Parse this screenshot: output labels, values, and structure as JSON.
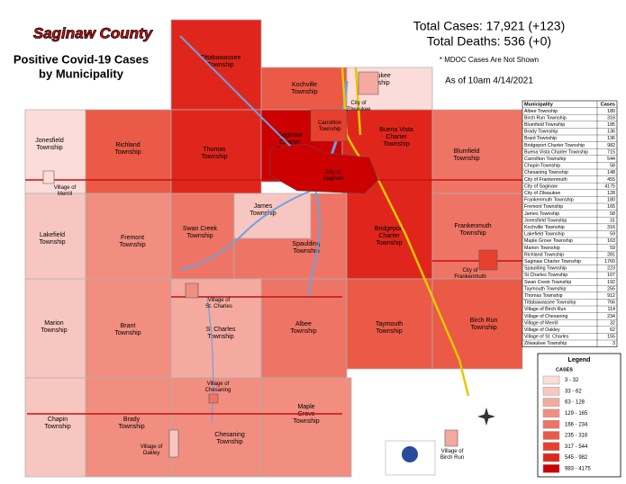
{
  "header": {
    "title": "Saginaw County",
    "subtitle_lines": [
      "Positive Covid-19 Cases",
      "by Municipality"
    ],
    "total_cases": "Total Cases:  17,921 (+123)",
    "total_deaths": "Total Deaths: 536 (+0)",
    "note": "* MDOC Cases Are Not Shown",
    "as_of": "As of 10am 4/14/2021"
  },
  "map": {
    "regions": [
      {
        "label": [
          "Tittabawassee",
          "Township"
        ],
        "color": "#e0261c"
      },
      {
        "label": [
          "Kochville",
          "Township"
        ],
        "color": "#ea5a46"
      },
      {
        "label": [
          "Zilwaukee",
          "Township"
        ],
        "color": "#fbdcd8"
      },
      {
        "label": [
          "Jonesfield",
          "Township"
        ],
        "color": "#fbdcd8"
      },
      {
        "label": [
          "Richland",
          "Township"
        ],
        "color": "#ea5a46"
      },
      {
        "label": [
          "Thomas",
          "Township"
        ],
        "color": "#e0261c"
      },
      {
        "label": [
          "Saginaw",
          "Charter",
          "Township"
        ],
        "color": "#cc0000"
      },
      {
        "label": [
          "Buena Vista",
          "Charter",
          "Township"
        ],
        "color": "#e0261c"
      },
      {
        "label": [
          "Blumfield",
          "Township"
        ],
        "color": "#ee7566"
      },
      {
        "label": [
          "Lakefield",
          "Township"
        ],
        "color": "#f8c6c0"
      },
      {
        "label": [
          "Fremont",
          "Township"
        ],
        "color": "#f18e80"
      },
      {
        "label": [
          "Swan Creek",
          "Township"
        ],
        "color": "#ee7566"
      },
      {
        "label": [
          "James",
          "Township"
        ],
        "color": "#f8c6c0"
      },
      {
        "label": [
          "Spaulding",
          "Township"
        ],
        "color": "#ee7566"
      },
      {
        "label": [
          "Bridgeport",
          "Charter",
          "Township"
        ],
        "color": "#e0261c"
      },
      {
        "label": [
          "Frankenmuth",
          "Township"
        ],
        "color": "#ee7566"
      },
      {
        "label": [
          "Marion",
          "Township"
        ],
        "color": "#f8c6c0"
      },
      {
        "label": [
          "Brant",
          "Township"
        ],
        "color": "#f18e80"
      },
      {
        "label": [
          "St Charles",
          "Township"
        ],
        "color": "#f5aaa0"
      },
      {
        "label": [
          "Albee",
          "Township"
        ],
        "color": "#ee7566"
      },
      {
        "label": [
          "Taymouth",
          "Township"
        ],
        "color": "#ea5a46"
      },
      {
        "label": [
          "Birch Run",
          "Township"
        ],
        "color": "#ea5a46"
      },
      {
        "label": [
          "Chapin",
          "Township"
        ],
        "color": "#f8c6c0"
      },
      {
        "label": [
          "Brady",
          "Township"
        ],
        "color": "#f18e80"
      },
      {
        "label": [
          "Chesaning",
          "Township"
        ],
        "color": "#f18e80"
      },
      {
        "label": [
          "Maple",
          "Grove",
          "Township"
        ],
        "color": "#f18e80"
      }
    ],
    "places": [
      {
        "label": [
          "City of",
          "Saginaw"
        ],
        "color": "#cc0000"
      },
      {
        "label": [
          "Carrollton",
          "Township"
        ],
        "color": "#e8402e"
      },
      {
        "label": [
          "City of",
          "Zilwaukee"
        ],
        "color": "#f5aaa0"
      },
      {
        "label": [
          "Village of",
          "Merrill"
        ],
        "color": "#fbdcd8"
      },
      {
        "label": [
          "Village of",
          "St. Charles"
        ],
        "color": "#f18e80"
      },
      {
        "label": [
          "Village of",
          "Chesaning"
        ],
        "color": "#ee7566"
      },
      {
        "label": [
          "Village of",
          "Oakley"
        ],
        "color": "#f8c6c0"
      },
      {
        "label": [
          "Village of",
          "Birch Run"
        ],
        "color": "#f5aaa0"
      },
      {
        "label": [
          "City of",
          "Frankenmuth"
        ],
        "color": "#e8402e"
      }
    ]
  },
  "table": {
    "columns": [
      "Municipality",
      "Cases"
    ],
    "rows": [
      [
        "Albee Township",
        180
      ],
      [
        "Birch Run Township",
        316
      ],
      [
        "Blumfield Township",
        185
      ],
      [
        "Brady Township",
        136
      ],
      [
        "Brant Township",
        136
      ],
      [
        "Bridgeport Charter Township",
        982
      ],
      [
        "Buena Vista Charter Township",
        715
      ],
      [
        "Carrollton Township",
        544
      ],
      [
        "Chapin Township",
        58
      ],
      [
        "Chesaning Township",
        148
      ],
      [
        "City of Frankenmuth",
        455
      ],
      [
        "City of Saginaw",
        4175
      ],
      [
        "City of Zilwaukee",
        128
      ],
      [
        "Frankenmuth Township",
        180
      ],
      [
        "Fremont Township",
        165
      ],
      [
        "James Township",
        58
      ],
      [
        "Jonesfield Township",
        31
      ],
      [
        "Kochville Township",
        316
      ],
      [
        "Lakefield Township",
        59
      ],
      [
        "Maple Grove Township",
        163
      ],
      [
        "Marion Township",
        59
      ],
      [
        "Richland Township",
        281
      ],
      [
        "Saginaw Charter Township",
        1760
      ],
      [
        "Spaulding Township",
        223
      ],
      [
        "St Charles Township",
        107
      ],
      [
        "Swan Creek Township",
        192
      ],
      [
        "Taymouth Township",
        255
      ],
      [
        "Thomas Township",
        912
      ],
      [
        "Tittabawassee Township",
        766
      ],
      [
        "Village of Birch Run",
        114
      ],
      [
        "Village of Chesaning",
        234
      ],
      [
        "Village of Merrill",
        32
      ],
      [
        "Village of Oakley",
        62
      ],
      [
        "Village of St. Charles",
        155
      ],
      [
        "Zilwaukee Township",
        3
      ]
    ]
  },
  "legend": {
    "title": "Legend",
    "subtitle": "CASES",
    "items": [
      {
        "label": "3 - 32",
        "color": "#fbdcd8"
      },
      {
        "label": "33 - 62",
        "color": "#f8c6c0"
      },
      {
        "label": "63 - 128",
        "color": "#f5aaa0"
      },
      {
        "label": "129 - 165",
        "color": "#f18e80"
      },
      {
        "label": "166 - 234",
        "color": "#ee7566"
      },
      {
        "label": "235 - 316",
        "color": "#ea5a46"
      },
      {
        "label": "317 - 544",
        "color": "#e8402e"
      },
      {
        "label": "545 - 982",
        "color": "#e0261c"
      },
      {
        "label": "983 - 4175",
        "color": "#cc0000"
      }
    ]
  }
}
